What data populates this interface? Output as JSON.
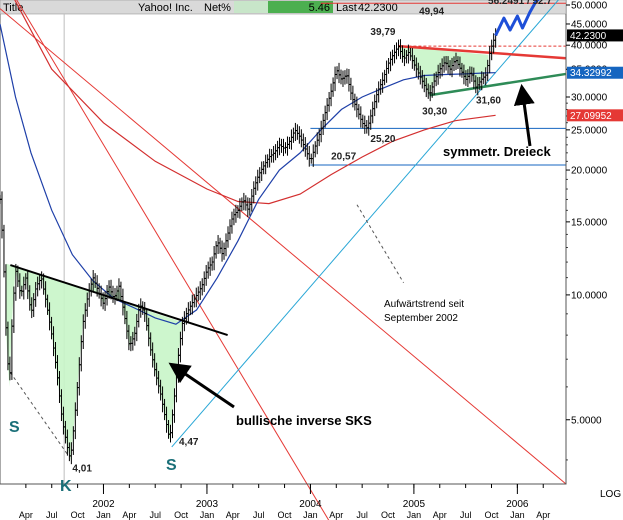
{
  "header": {
    "title_label": "Title",
    "name": "Yahoo! Inc.",
    "change_label": "Net%",
    "change_value": "5.46",
    "last_label": "Last",
    "last_value": "42.2300"
  },
  "chart_data": {
    "type": "candlestick-line",
    "y_scale": "log",
    "y_axis_label": "LOG",
    "ylim": [
      3.5,
      50
    ],
    "y_ticks": [
      {
        "v": 50,
        "label": "50.0000"
      },
      {
        "v": 45,
        "label": "45.0000"
      },
      {
        "v": 40,
        "label": "40.0000"
      },
      {
        "v": 35,
        "label": "35.0000"
      },
      {
        "v": 30,
        "label": "30.0000"
      },
      {
        "v": 25,
        "label": "25.0000"
      },
      {
        "v": 20,
        "label": "20.0000"
      },
      {
        "v": 15,
        "label": "15.0000"
      },
      {
        "v": 10,
        "label": "10.0000"
      },
      {
        "v": 5,
        "label": "5.0000"
      }
    ],
    "price_boxes": [
      {
        "v": 42.23,
        "label": "42.2300",
        "bg": "#000000",
        "fg": "#ffffff"
      },
      {
        "v": 34.33,
        "label": "34.32992",
        "bg": "#1565c0",
        "fg": "#ffffff"
      },
      {
        "v": 27.1,
        "label": "27.09952",
        "bg": "#e53935",
        "fg": "#ffffff"
      }
    ],
    "top_value_label": "56.2491 / 52.7",
    "months": [
      "Apr",
      "Jul",
      "Oct",
      "Jan",
      "Apr",
      "Jul",
      "Oct",
      "Jan",
      "Apr",
      "Jul",
      "Oct",
      "Jan",
      "Apr",
      "Jul",
      "Oct",
      "Jan",
      "Apr",
      "Jul",
      "Oct",
      "Jan",
      "Apr"
    ],
    "month_t": [
      0.25,
      0.5,
      0.75,
      1.0,
      1.25,
      1.5,
      1.75,
      2.0,
      2.25,
      2.5,
      2.75,
      3.0,
      3.25,
      3.5,
      3.75,
      4.0,
      4.25,
      4.5,
      4.75,
      5.0,
      5.25
    ],
    "years": [
      {
        "label": "2002",
        "t": 1.0
      },
      {
        "label": "2003",
        "t": 2.0
      },
      {
        "label": "2004",
        "t": 3.0
      },
      {
        "label": "2005",
        "t": 4.0
      },
      {
        "label": "2006",
        "t": 5.0
      }
    ],
    "x_range_years": [
      0.0,
      5.47
    ],
    "price_path": [
      [
        0.0,
        17
      ],
      [
        0.03,
        13
      ],
      [
        0.06,
        8
      ],
      [
        0.09,
        6
      ],
      [
        0.12,
        9
      ],
      [
        0.15,
        11.5
      ],
      [
        0.2,
        10
      ],
      [
        0.25,
        11
      ],
      [
        0.3,
        9
      ],
      [
        0.35,
        10.5
      ],
      [
        0.4,
        11
      ],
      [
        0.45,
        9.5
      ],
      [
        0.5,
        8
      ],
      [
        0.55,
        6.5
      ],
      [
        0.6,
        5
      ],
      [
        0.65,
        4.3
      ],
      [
        0.68,
        4.0
      ],
      [
        0.72,
        5
      ],
      [
        0.76,
        6.5
      ],
      [
        0.8,
        8.5
      ],
      [
        0.85,
        10
      ],
      [
        0.9,
        11
      ],
      [
        0.95,
        10.2
      ],
      [
        1.0,
        9.5
      ],
      [
        1.05,
        10.5
      ],
      [
        1.1,
        9.8
      ],
      [
        1.15,
        10.5
      ],
      [
        1.2,
        9
      ],
      [
        1.25,
        7.5
      ],
      [
        1.3,
        8
      ],
      [
        1.35,
        9.5
      ],
      [
        1.4,
        9
      ],
      [
        1.45,
        7.5
      ],
      [
        1.5,
        6.5
      ],
      [
        1.55,
        5.8
      ],
      [
        1.6,
        5
      ],
      [
        1.64,
        4.47
      ],
      [
        1.68,
        5.5
      ],
      [
        1.72,
        7
      ],
      [
        1.76,
        8.5
      ],
      [
        1.8,
        9
      ],
      [
        1.85,
        9.5
      ],
      [
        1.9,
        10
      ],
      [
        1.95,
        10.5
      ],
      [
        2.0,
        11.5
      ],
      [
        2.05,
        12
      ],
      [
        2.1,
        13.5
      ],
      [
        2.15,
        12.5
      ],
      [
        2.2,
        14
      ],
      [
        2.25,
        15.5
      ],
      [
        2.3,
        16
      ],
      [
        2.35,
        17
      ],
      [
        2.4,
        16
      ],
      [
        2.45,
        18
      ],
      [
        2.5,
        19.5
      ],
      [
        2.55,
        20.5
      ],
      [
        2.6,
        21.5
      ],
      [
        2.65,
        22
      ],
      [
        2.7,
        23
      ],
      [
        2.75,
        22.5
      ],
      [
        2.8,
        23.5
      ],
      [
        2.85,
        25
      ],
      [
        2.9,
        24
      ],
      [
        2.95,
        22.5
      ],
      [
        3.0,
        21
      ],
      [
        3.05,
        23
      ],
      [
        3.1,
        25
      ],
      [
        3.15,
        28
      ],
      [
        3.2,
        31
      ],
      [
        3.25,
        35
      ],
      [
        3.3,
        33
      ],
      [
        3.35,
        34
      ],
      [
        3.4,
        30
      ],
      [
        3.45,
        28
      ],
      [
        3.5,
        26
      ],
      [
        3.55,
        25.2
      ],
      [
        3.6,
        28
      ],
      [
        3.65,
        31
      ],
      [
        3.7,
        33
      ],
      [
        3.75,
        36
      ],
      [
        3.8,
        38
      ],
      [
        3.85,
        39.79
      ],
      [
        3.9,
        37
      ],
      [
        3.95,
        38.5
      ],
      [
        4.0,
        36
      ],
      [
        4.05,
        34
      ],
      [
        4.1,
        32
      ],
      [
        4.15,
        30.3
      ],
      [
        4.2,
        33
      ],
      [
        4.25,
        35
      ],
      [
        4.3,
        36.5
      ],
      [
        4.35,
        35
      ],
      [
        4.4,
        37
      ],
      [
        4.45,
        35
      ],
      [
        4.5,
        33
      ],
      [
        4.55,
        34.5
      ],
      [
        4.6,
        31.6
      ],
      [
        4.65,
        33
      ],
      [
        4.7,
        34
      ],
      [
        4.73,
        38
      ],
      [
        4.76,
        40.5
      ],
      [
        4.79,
        42.23
      ]
    ],
    "projection_path": [
      [
        4.79,
        42.2
      ],
      [
        4.87,
        46.5
      ],
      [
        4.93,
        43.5
      ],
      [
        5.0,
        47
      ],
      [
        5.05,
        44
      ],
      [
        5.12,
        48
      ],
      [
        5.18,
        51
      ],
      [
        5.26,
        53
      ]
    ],
    "ma_blue": [
      [
        0.0,
        45
      ],
      [
        0.15,
        30
      ],
      [
        0.3,
        22
      ],
      [
        0.5,
        16
      ],
      [
        0.7,
        12.5
      ],
      [
        0.9,
        10.8
      ],
      [
        1.1,
        9.8
      ],
      [
        1.3,
        9.3
      ],
      [
        1.5,
        8.8
      ],
      [
        1.7,
        8.5
      ],
      [
        1.9,
        9.2
      ],
      [
        2.1,
        11
      ],
      [
        2.3,
        13.5
      ],
      [
        2.5,
        17
      ],
      [
        2.7,
        20
      ],
      [
        2.9,
        22
      ],
      [
        3.1,
        25
      ],
      [
        3.3,
        28
      ],
      [
        3.5,
        30
      ],
      [
        3.7,
        31.5
      ],
      [
        3.9,
        33
      ],
      [
        4.1,
        33.8
      ],
      [
        4.3,
        34
      ],
      [
        4.5,
        34.1
      ],
      [
        4.7,
        34.3
      ],
      [
        4.79,
        34.33
      ]
    ],
    "ma_red": [
      [
        0.0,
        60
      ],
      [
        0.5,
        35
      ],
      [
        1.0,
        26
      ],
      [
        1.5,
        21
      ],
      [
        2.0,
        18
      ],
      [
        2.3,
        16.8
      ],
      [
        2.6,
        16.6
      ],
      [
        2.9,
        17.5
      ],
      [
        3.2,
        19.5
      ],
      [
        3.5,
        21.5
      ],
      [
        3.8,
        23.5
      ],
      [
        4.1,
        25
      ],
      [
        4.4,
        26.3
      ],
      [
        4.79,
        27.1
      ]
    ],
    "neckline": [
      [
        0.1,
        11.8
      ],
      [
        2.2,
        8.0
      ]
    ],
    "sks_fill": [
      [
        0.06,
        8
      ],
      [
        0.09,
        6
      ],
      [
        0.12,
        9
      ],
      [
        0.15,
        11.5
      ],
      [
        0.2,
        10
      ],
      [
        0.25,
        11
      ],
      [
        0.3,
        9
      ],
      [
        0.35,
        10.5
      ],
      [
        0.4,
        11
      ],
      [
        0.45,
        9.5
      ],
      [
        0.5,
        8
      ],
      [
        0.55,
        6.5
      ],
      [
        0.6,
        5
      ],
      [
        0.65,
        4.3
      ],
      [
        0.68,
        4.0
      ],
      [
        0.72,
        5
      ],
      [
        0.76,
        6.5
      ],
      [
        0.8,
        8.5
      ],
      [
        0.85,
        10
      ],
      [
        0.9,
        11
      ],
      [
        0.95,
        10.2
      ],
      [
        1.0,
        9.5
      ],
      [
        1.05,
        10.5
      ],
      [
        1.1,
        9.8
      ],
      [
        1.15,
        10.5
      ],
      [
        1.2,
        9
      ],
      [
        1.25,
        7.5
      ],
      [
        1.3,
        8
      ],
      [
        1.35,
        9.5
      ],
      [
        1.4,
        9
      ],
      [
        1.45,
        7.5
      ],
      [
        1.5,
        6.5
      ],
      [
        1.55,
        5.8
      ],
      [
        1.6,
        5
      ],
      [
        1.64,
        4.47
      ],
      [
        1.68,
        5.5
      ],
      [
        1.72,
        7
      ],
      [
        1.76,
        8.5
      ]
    ],
    "triangle_fill": [
      [
        3.85,
        39.79
      ],
      [
        3.9,
        37
      ],
      [
        3.95,
        38.5
      ],
      [
        4.0,
        36
      ],
      [
        4.05,
        34
      ],
      [
        4.1,
        32
      ],
      [
        4.15,
        30.3
      ],
      [
        4.2,
        33
      ],
      [
        4.25,
        35
      ],
      [
        4.3,
        36.5
      ],
      [
        4.35,
        35
      ],
      [
        4.4,
        37
      ],
      [
        4.45,
        35
      ],
      [
        4.5,
        33
      ],
      [
        4.55,
        34.5
      ],
      [
        4.6,
        31.6
      ],
      [
        4.65,
        33
      ],
      [
        4.72,
        36
      ]
    ],
    "triangle_upper": [
      [
        3.85,
        39.79
      ],
      [
        5.47,
        37.2
      ]
    ],
    "triangle_lower": [
      [
        4.15,
        30.3
      ],
      [
        5.47,
        34.1
      ]
    ],
    "uptrend": [
      [
        1.66,
        4.3
      ],
      [
        5.47,
        54
      ]
    ],
    "red_diag1": [
      [
        0.0,
        60
      ],
      [
        3.2,
        2.8
      ]
    ],
    "red_diag2": [
      [
        0.0,
        49
      ],
      [
        5.47,
        3.5
      ]
    ],
    "hlines": [
      {
        "v": 25.2,
        "from": 3.0,
        "color": "#1565c0"
      },
      {
        "v": 20.57,
        "from": 3.0,
        "color": "#1565c0"
      },
      {
        "v": 39.79,
        "from": 3.85,
        "color": "#e53935",
        "dash": true
      },
      {
        "v": 50.5,
        "from": 3.1,
        "color": "#e53935"
      }
    ],
    "vline_t": 0.62,
    "dashed_K": [
      [
        0.1,
        6.5
      ],
      [
        0.66,
        4.1
      ]
    ],
    "uptrend_note_leader": [
      [
        3.45,
        16.5
      ],
      [
        3.9,
        10.7
      ]
    ],
    "value_labels": [
      {
        "text": "39,79",
        "t": 3.58,
        "v": 42.3
      },
      {
        "text": "49,94",
        "t": 4.05,
        "v": 47.4
      },
      {
        "text": "30,30",
        "t": 4.08,
        "v": 27.2
      },
      {
        "text": "31,60",
        "t": 4.6,
        "v": 28.9
      },
      {
        "text": "25,20",
        "t": 3.58,
        "v": 23.4
      },
      {
        "text": "20,57",
        "t": 3.2,
        "v": 21.2
      },
      {
        "text": "4,01",
        "t": 0.7,
        "v": 3.75
      },
      {
        "text": "4,47",
        "t": 1.73,
        "v": 4.35
      }
    ],
    "annotations": {
      "uptrend_note_1": "Aufwärtstrend seit",
      "uptrend_note_2": "September 2002",
      "triangle_label": "symmetr. Dreieck",
      "sks_label": "bullische inverse SKS",
      "s_left": "S",
      "k_head": "K",
      "s_right": "S"
    }
  }
}
